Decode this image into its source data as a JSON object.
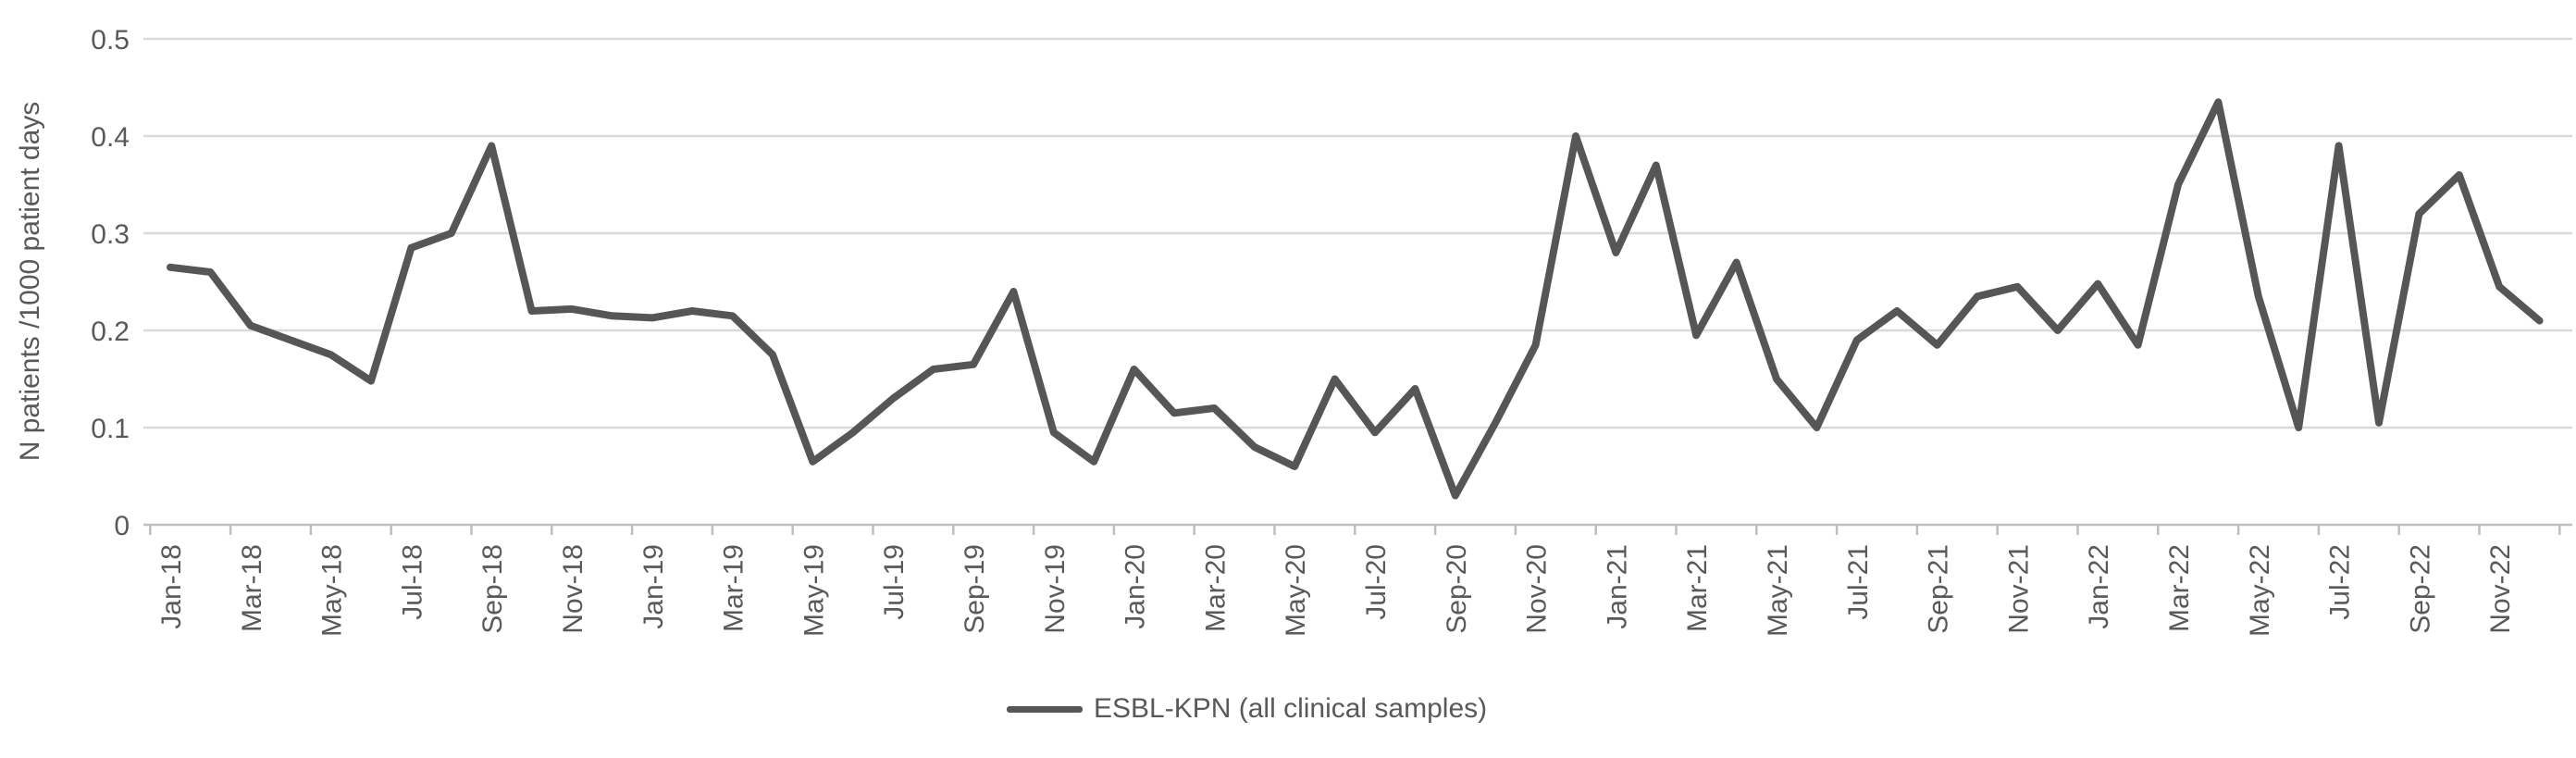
{
  "chart_data": {
    "type": "line",
    "title": "",
    "xlabel": "",
    "ylabel": "N patients /1000 patient days",
    "ylim": [
      0,
      0.5
    ],
    "grid": "horizontal",
    "legend_position": "bottom-center",
    "x_label_interval": 2,
    "yticks": {
      "values": [
        0,
        0.1,
        0.2,
        0.3,
        0.4,
        0.5
      ],
      "labels": [
        "0",
        "0.1",
        "0.2",
        "0.3",
        "0.4",
        "0.5"
      ]
    },
    "categories": [
      "Jan-18",
      "Feb-18",
      "Mar-18",
      "Apr-18",
      "May-18",
      "Jun-18",
      "Jul-18",
      "Aug-18",
      "Sep-18",
      "Oct-18",
      "Nov-18",
      "Dec-18",
      "Jan-19",
      "Feb-19",
      "Mar-19",
      "Apr-19",
      "May-19",
      "Jun-19",
      "Jul-19",
      "Aug-19",
      "Sep-19",
      "Oct-19",
      "Nov-19",
      "Dec-19",
      "Jan-20",
      "Feb-20",
      "Mar-20",
      "Apr-20",
      "May-20",
      "Jun-20",
      "Jul-20",
      "Aug-20",
      "Sep-20",
      "Oct-20",
      "Nov-20",
      "Dec-20",
      "Jan-21",
      "Feb-21",
      "Mar-21",
      "Apr-21",
      "May-21",
      "Jun-21",
      "Jul-21",
      "Aug-21",
      "Sep-21",
      "Oct-21",
      "Nov-21",
      "Dec-21",
      "Jan-22",
      "Feb-22",
      "Mar-22",
      "Apr-22",
      "May-22",
      "Jun-22",
      "Jul-22",
      "Aug-22",
      "Sep-22",
      "Oct-22",
      "Nov-22",
      "Dec-22"
    ],
    "series": [
      {
        "name": "ESBL-KPN (all clinical samples)",
        "color": "#565656",
        "values": [
          0.265,
          0.26,
          0.205,
          0.19,
          0.175,
          0.148,
          0.285,
          0.3,
          0.39,
          0.22,
          0.222,
          0.215,
          0.213,
          0.22,
          0.215,
          0.175,
          0.065,
          0.095,
          0.13,
          0.16,
          0.165,
          0.24,
          0.095,
          0.065,
          0.16,
          0.115,
          0.12,
          0.08,
          0.06,
          0.15,
          0.095,
          0.14,
          0.03,
          0.105,
          0.185,
          0.4,
          0.28,
          0.37,
          0.195,
          0.27,
          0.15,
          0.1,
          0.19,
          0.22,
          0.185,
          0.235,
          0.245,
          0.2,
          0.248,
          0.185,
          0.35,
          0.435,
          0.235,
          0.1,
          0.39,
          0.105,
          0.32,
          0.36,
          0.245,
          0.21
        ]
      }
    ],
    "colors": {
      "grid": "#d9d9d9",
      "axis": "#bfbfbf",
      "tick": "#bfbfbf",
      "text": "#595959",
      "background": "#ffffff"
    }
  }
}
